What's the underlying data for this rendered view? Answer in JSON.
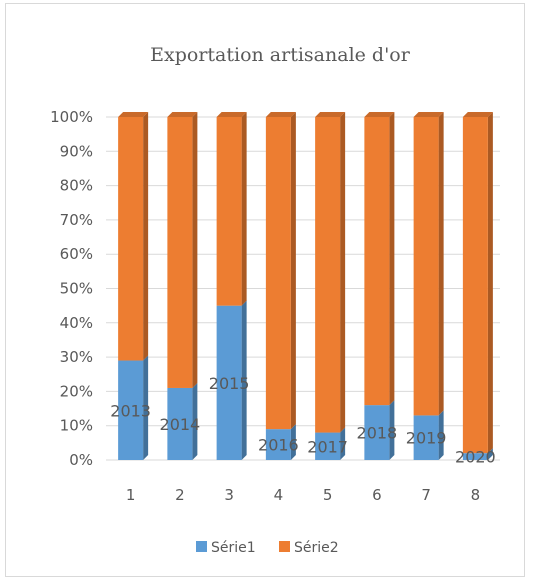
{
  "chart_data": {
    "type": "bar",
    "stacked": "percent",
    "title": "Exportation artisanale d'or",
    "categories": [
      "1",
      "2",
      "3",
      "4",
      "5",
      "6",
      "7",
      "8"
    ],
    "y_ticks": [
      "0%",
      "10%",
      "20%",
      "30%",
      "40%",
      "50%",
      "60%",
      "70%",
      "80%",
      "90%",
      "100%"
    ],
    "ylim": [
      0,
      100
    ],
    "grid": true,
    "legend_position": "bottom",
    "series": [
      {
        "name": "Série1",
        "color": "#5b9bd5",
        "values": [
          29,
          21,
          45,
          9,
          8,
          16,
          13,
          2
        ]
      },
      {
        "name": "Série2",
        "color": "#ed7d31",
        "values": [
          71,
          79,
          55,
          91,
          92,
          84,
          87,
          98
        ]
      }
    ],
    "data_labels": [
      "2013",
      "2014",
      "2015",
      "2016",
      "2017",
      "2018",
      "2019",
      "2020"
    ]
  }
}
